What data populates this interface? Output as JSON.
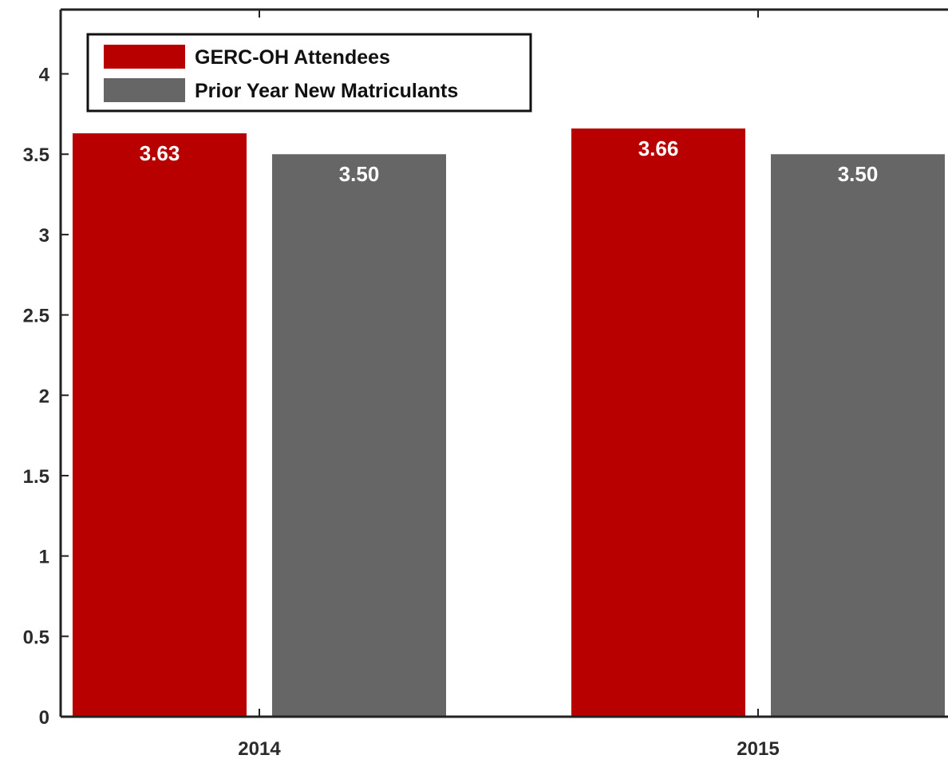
{
  "chart_data": {
    "type": "bar",
    "categories": [
      "2014",
      "2015"
    ],
    "series": [
      {
        "name": "GERC-OH Attendees",
        "color": "#b80000",
        "values": [
          3.63,
          3.66
        ],
        "labels": [
          "3.63",
          "3.66"
        ]
      },
      {
        "name": "Prior Year New Matriculants",
        "color": "#666666",
        "values": [
          3.5,
          3.5
        ],
        "labels": [
          "3.50",
          "3.50"
        ]
      }
    ],
    "title": "",
    "xlabel": "",
    "ylabel": "",
    "ylim": [
      0,
      4.4
    ],
    "yticks": [
      "0",
      "0.5",
      "1",
      "1.5",
      "2",
      "2.5",
      "3",
      "3.5",
      "4"
    ],
    "grid": false,
    "legend_position": "top-left"
  }
}
